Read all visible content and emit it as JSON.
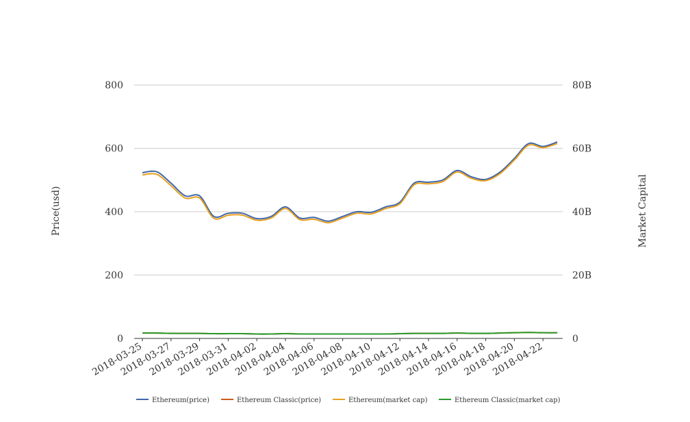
{
  "chart_data": {
    "type": "line",
    "x": [
      "2018-03-25",
      "2018-03-26",
      "2018-03-27",
      "2018-03-28",
      "2018-03-29",
      "2018-03-30",
      "2018-03-31",
      "2018-04-01",
      "2018-04-02",
      "2018-04-03",
      "2018-04-04",
      "2018-04-05",
      "2018-04-06",
      "2018-04-07",
      "2018-04-08",
      "2018-04-09",
      "2018-04-10",
      "2018-04-11",
      "2018-04-12",
      "2018-04-13",
      "2018-04-14",
      "2018-04-15",
      "2018-04-16",
      "2018-04-17",
      "2018-04-18",
      "2018-04-19",
      "2018-04-20",
      "2018-04-21",
      "2018-04-22",
      "2018-04-23"
    ],
    "x_tick_labels": [
      "2018-03-25",
      "2018-03-27",
      "2018-03-29",
      "2018-03-31",
      "2018-04-02",
      "2018-04-04",
      "2018-04-06",
      "2018-04-08",
      "2018-04-10",
      "2018-04-12",
      "2018-04-14",
      "2018-04-16",
      "2018-04-18",
      "2018-04-20",
      "2018-04-22"
    ],
    "ylabel": "Price(usd)",
    "y2label": "Market Capital",
    "ylim": [
      0,
      800
    ],
    "y2lim": [
      0,
      80000000000
    ],
    "y_ticks": [
      "0",
      "200",
      "400",
      "600",
      "800"
    ],
    "y2_ticks": [
      "0",
      "20B",
      "40B",
      "60B",
      "80B"
    ],
    "grid": true,
    "legend_position": "bottom",
    "series": [
      {
        "name": "Ethereum(price)",
        "axis": "left",
        "color": "#3f67a8",
        "values": [
          523,
          526,
          490,
          450,
          450,
          385,
          395,
          395,
          378,
          385,
          415,
          380,
          382,
          370,
          385,
          400,
          398,
          415,
          430,
          490,
          493,
          500,
          530,
          510,
          502,
          525,
          568,
          615,
          606,
          620
        ]
      },
      {
        "name": "Ethereum Classic(price)",
        "axis": "left",
        "color": "#cc5a1a",
        "values": [
          17,
          17,
          16,
          16,
          16,
          15,
          15,
          15,
          14,
          14,
          15,
          14,
          14,
          14,
          14,
          14,
          14,
          14,
          15,
          16,
          16,
          16,
          17,
          16,
          16,
          17,
          18,
          19,
          18,
          18
        ]
      },
      {
        "name": "Ethereum(market cap)",
        "axis": "right",
        "color": "#e8a020",
        "values": [
          51600000000,
          51800000000,
          48200000000,
          44300000000,
          44300000000,
          37900000000,
          38900000000,
          38900000000,
          37300000000,
          38000000000,
          41000000000,
          37500000000,
          37600000000,
          36500000000,
          38000000000,
          39500000000,
          39300000000,
          41000000000,
          42500000000,
          48500000000,
          48800000000,
          49500000000,
          52500000000,
          50500000000,
          49800000000,
          52000000000,
          56300000000,
          61000000000,
          60200000000,
          61500000000
        ]
      },
      {
        "name": "Ethereum Classic(market cap)",
        "axis": "right",
        "color": "#2a9a2a",
        "values": [
          1700000000,
          1700000000,
          1600000000,
          1600000000,
          1600000000,
          1500000000,
          1500000000,
          1500000000,
          1400000000,
          1400000000,
          1500000000,
          1400000000,
          1400000000,
          1400000000,
          1400000000,
          1400000000,
          1400000000,
          1400000000,
          1500000000,
          1600000000,
          1600000000,
          1600000000,
          1700000000,
          1600000000,
          1600000000,
          1700000000,
          1800000000,
          1900000000,
          1800000000,
          1800000000
        ]
      }
    ]
  }
}
